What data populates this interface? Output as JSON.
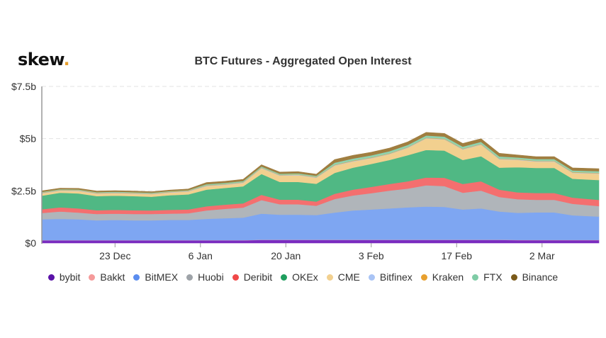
{
  "logo": {
    "text": "skew",
    "dot": "."
  },
  "chart_data": {
    "type": "area",
    "stacked": true,
    "title": "BTC Futures - Aggregated Open Interest",
    "ylim": [
      0,
      7.5
    ],
    "yticks": [
      {
        "v": 0,
        "label": "$0"
      },
      {
        "v": 2.5,
        "label": "$2.5b"
      },
      {
        "v": 5,
        "label": "$5b"
      },
      {
        "v": 7.5,
        "label": "$7.5b"
      }
    ],
    "xticks": [
      {
        "date": "Dec 23",
        "label": "23 Dec"
      },
      {
        "date": "Jan 6",
        "label": "6 Jan"
      },
      {
        "date": "Jan 20",
        "label": "20 Jan"
      },
      {
        "date": "Feb 3",
        "label": "3 Feb"
      },
      {
        "date": "Feb 17",
        "label": "17 Feb"
      },
      {
        "date": "Mar 2",
        "label": "2 Mar"
      }
    ],
    "grid": "horizontal-dashed",
    "legend_position": "bottom",
    "unit": "USD billions",
    "x": [
      "Dec 11",
      "Dec 14",
      "Dec 17",
      "Dec 20",
      "Dec 23",
      "Dec 26",
      "Dec 29",
      "Jan 1",
      "Jan 4",
      "Jan 7",
      "Jan 10",
      "Jan 13",
      "Jan 16",
      "Jan 19",
      "Jan 22",
      "Jan 25",
      "Jan 28",
      "Jan 31",
      "Feb 3",
      "Feb 6",
      "Feb 9",
      "Feb 12",
      "Feb 15",
      "Feb 18",
      "Feb 21",
      "Feb 24",
      "Feb 27",
      "Mar 1",
      "Mar 4",
      "Mar 7",
      "Mar 10"
    ],
    "series": [
      {
        "name": "bybit",
        "color": "#7a2cc0",
        "legend_color": "#5a12a8",
        "values": [
          0.13,
          0.13,
          0.13,
          0.13,
          0.13,
          0.13,
          0.13,
          0.13,
          0.13,
          0.13,
          0.13,
          0.13,
          0.15,
          0.15,
          0.15,
          0.15,
          0.15,
          0.15,
          0.15,
          0.15,
          0.15,
          0.15,
          0.15,
          0.15,
          0.15,
          0.15,
          0.14,
          0.14,
          0.14,
          0.14,
          0.14
        ]
      },
      {
        "name": "Bakkt",
        "color": "#f59a9a",
        "legend_color": "#f59a9a",
        "values": [
          0.01,
          0.01,
          0.01,
          0.01,
          0.01,
          0.01,
          0.01,
          0.01,
          0.01,
          0.01,
          0.01,
          0.01,
          0.01,
          0.01,
          0.01,
          0.01,
          0.01,
          0.01,
          0.01,
          0.01,
          0.01,
          0.01,
          0.01,
          0.01,
          0.01,
          0.01,
          0.01,
          0.01,
          0.01,
          0.01,
          0.01
        ]
      },
      {
        "name": "BitMEX",
        "color": "#7ea6f2",
        "legend_color": "#5b8def",
        "values": [
          1.0,
          1.02,
          1.0,
          0.95,
          0.97,
          0.95,
          0.95,
          0.97,
          0.97,
          1.02,
          1.05,
          1.08,
          1.25,
          1.2,
          1.2,
          1.18,
          1.3,
          1.4,
          1.45,
          1.5,
          1.55,
          1.59,
          1.57,
          1.45,
          1.5,
          1.35,
          1.3,
          1.32,
          1.32,
          1.18,
          1.12
        ]
      },
      {
        "name": "Huobi",
        "color": "#b0b5ba",
        "legend_color": "#9ea3a8",
        "values": [
          0.3,
          0.35,
          0.32,
          0.3,
          0.3,
          0.3,
          0.3,
          0.3,
          0.32,
          0.4,
          0.45,
          0.48,
          0.65,
          0.5,
          0.5,
          0.45,
          0.65,
          0.72,
          0.78,
          0.85,
          0.9,
          1.02,
          1.0,
          0.8,
          0.85,
          0.7,
          0.65,
          0.6,
          0.6,
          0.55,
          0.5
        ]
      },
      {
        "name": "Deribit",
        "color": "#f46f6f",
        "legend_color": "#f04848",
        "values": [
          0.18,
          0.2,
          0.2,
          0.18,
          0.18,
          0.18,
          0.17,
          0.18,
          0.18,
          0.2,
          0.2,
          0.2,
          0.25,
          0.22,
          0.22,
          0.2,
          0.25,
          0.28,
          0.3,
          0.32,
          0.35,
          0.37,
          0.4,
          0.42,
          0.45,
          0.35,
          0.33,
          0.33,
          0.33,
          0.3,
          0.3
        ]
      },
      {
        "name": "OKEx",
        "color": "#50b884",
        "legend_color": "#1f9e5e",
        "values": [
          0.65,
          0.7,
          0.72,
          0.68,
          0.68,
          0.68,
          0.66,
          0.7,
          0.72,
          0.8,
          0.8,
          0.82,
          1.0,
          0.85,
          0.85,
          0.85,
          1.0,
          1.05,
          1.1,
          1.15,
          1.25,
          1.32,
          1.3,
          1.15,
          1.2,
          1.05,
          1.2,
          1.2,
          1.2,
          0.9,
          0.95
        ]
      },
      {
        "name": "CME",
        "color": "#f2d08f",
        "legend_color": "#f2d08f",
        "values": [
          0.11,
          0.1,
          0.12,
          0.12,
          0.12,
          0.12,
          0.12,
          0.13,
          0.14,
          0.17,
          0.15,
          0.16,
          0.27,
          0.3,
          0.32,
          0.29,
          0.35,
          0.3,
          0.27,
          0.28,
          0.35,
          0.55,
          0.53,
          0.5,
          0.55,
          0.4,
          0.35,
          0.3,
          0.3,
          0.28,
          0.3
        ]
      },
      {
        "name": "Bitfinex",
        "color": "#a9c4f5",
        "legend_color": "#a9c4f5",
        "values": [
          0.02,
          0.02,
          0.02,
          0.02,
          0.02,
          0.02,
          0.02,
          0.02,
          0.02,
          0.02,
          0.02,
          0.02,
          0.02,
          0.02,
          0.02,
          0.02,
          0.02,
          0.02,
          0.02,
          0.02,
          0.02,
          0.02,
          0.02,
          0.02,
          0.02,
          0.02,
          0.02,
          0.02,
          0.02,
          0.02,
          0.02
        ]
      },
      {
        "name": "Kraken",
        "color": "#e9a93a",
        "legend_color": "#e8a02e",
        "values": [
          0.02,
          0.02,
          0.02,
          0.02,
          0.02,
          0.02,
          0.02,
          0.02,
          0.02,
          0.02,
          0.02,
          0.02,
          0.02,
          0.02,
          0.02,
          0.02,
          0.02,
          0.02,
          0.02,
          0.02,
          0.02,
          0.02,
          0.02,
          0.02,
          0.02,
          0.02,
          0.02,
          0.02,
          0.02,
          0.02,
          0.02
        ]
      },
      {
        "name": "FTX",
        "color": "#8fd2b0",
        "legend_color": "#7fcca6",
        "values": [
          0.03,
          0.03,
          0.03,
          0.03,
          0.03,
          0.03,
          0.03,
          0.03,
          0.03,
          0.05,
          0.05,
          0.05,
          0.05,
          0.05,
          0.05,
          0.05,
          0.1,
          0.1,
          0.1,
          0.1,
          0.1,
          0.1,
          0.1,
          0.1,
          0.1,
          0.1,
          0.08,
          0.08,
          0.08,
          0.08,
          0.08
        ]
      },
      {
        "name": "Binance",
        "color": "#a07e40",
        "legend_color": "#7a5a1a",
        "values": [
          0.05,
          0.05,
          0.05,
          0.05,
          0.05,
          0.05,
          0.05,
          0.05,
          0.05,
          0.08,
          0.08,
          0.08,
          0.08,
          0.08,
          0.08,
          0.08,
          0.15,
          0.15,
          0.15,
          0.15,
          0.15,
          0.15,
          0.15,
          0.15,
          0.15,
          0.15,
          0.12,
          0.12,
          0.12,
          0.12,
          0.12
        ]
      }
    ]
  }
}
